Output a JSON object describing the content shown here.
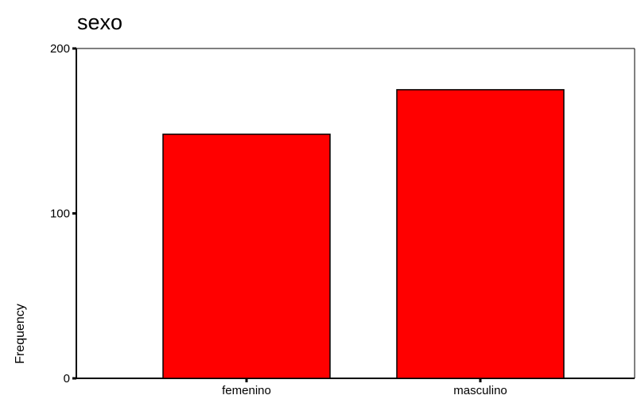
{
  "chart_data": {
    "type": "bar",
    "title": "sexo",
    "categories": [
      "femenino",
      "masculino"
    ],
    "values": [
      148,
      175
    ],
    "xlabel": "",
    "ylabel": "Frequency",
    "ylim": [
      0,
      200
    ],
    "yticks": [
      0,
      100,
      200
    ],
    "grid": false,
    "legend": "none",
    "bar_color": "#ff0000",
    "bar_outline_color": "#000000"
  }
}
